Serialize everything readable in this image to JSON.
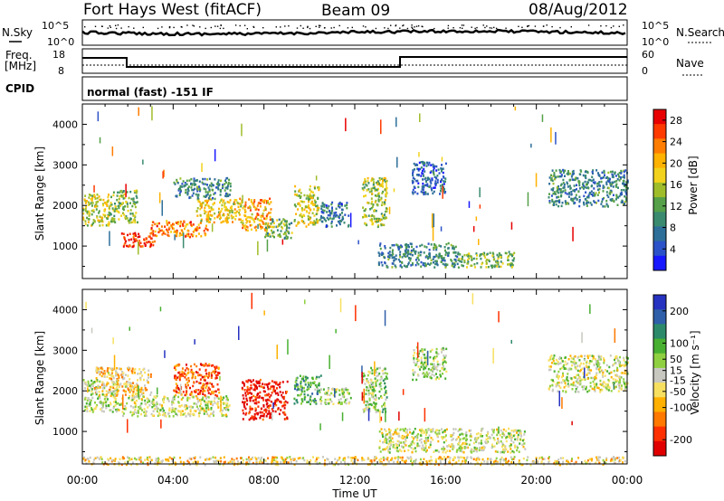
{
  "header": {
    "station": "Fort Hays West (fitACF)",
    "beam": "Beam 09",
    "date": "08/Aug/2012"
  },
  "top_panels": {
    "noise": {
      "left_label": "N.Sky",
      "right_label": "N.Search",
      "left_ticks": [
        "10^5",
        "10^0"
      ],
      "right_ticks": [
        "10^5",
        "10^0"
      ]
    },
    "freq": {
      "left_label_1": "Freq.",
      "left_label_2": "[MHz]",
      "left_ticks": [
        "18",
        "8"
      ],
      "right_label": "Nave",
      "right_ticks": [
        "60",
        "0"
      ]
    },
    "cpid": {
      "label": "CPID",
      "mode_text": "normal (fast) -151 IF"
    }
  },
  "chart_data": [
    {
      "type": "heatmap",
      "name": "power",
      "ylabel": "Slant Range [km]",
      "yticks": [
        1000,
        2000,
        3000,
        4000
      ],
      "ylim": [
        200,
        4500
      ],
      "xlim": [
        0,
        24
      ],
      "colorbar": {
        "label": "Power [dB]",
        "ticks": [
          4,
          8,
          12,
          16,
          20,
          24,
          28
        ],
        "range": [
          0,
          30
        ],
        "colors": [
          "#1818ff",
          "#2b52c8",
          "#2e6f9a",
          "#3a8a70",
          "#55a048",
          "#9fbd2a",
          "#f2d21c",
          "#ffb200",
          "#ff7d00",
          "#ff3a00",
          "#e80000"
        ]
      },
      "echo_regions": [
        {
          "t0": 0.0,
          "t1": 1.2,
          "r0": 1500,
          "r1": 2300,
          "level": 0.55
        },
        {
          "t0": 1.2,
          "t1": 2.4,
          "r0": 1600,
          "r1": 2400,
          "level": 0.45
        },
        {
          "t0": 1.7,
          "t1": 3.2,
          "r0": 1000,
          "r1": 1350,
          "level": 0.9
        },
        {
          "t0": 3.0,
          "t1": 5.5,
          "r0": 1250,
          "r1": 1650,
          "level": 0.75
        },
        {
          "t0": 5.0,
          "t1": 7.0,
          "r0": 1600,
          "r1": 2200,
          "level": 0.6
        },
        {
          "t0": 4.0,
          "t1": 6.5,
          "r0": 2200,
          "r1": 2700,
          "level": 0.3
        },
        {
          "t0": 7.0,
          "t1": 8.3,
          "r0": 1400,
          "r1": 2200,
          "level": 0.7
        },
        {
          "t0": 8.0,
          "t1": 9.2,
          "r0": 1200,
          "r1": 1700,
          "level": 0.4
        },
        {
          "t0": 9.3,
          "t1": 10.4,
          "r0": 1500,
          "r1": 2500,
          "level": 0.55
        },
        {
          "t0": 10.4,
          "t1": 11.7,
          "r0": 1500,
          "r1": 2100,
          "level": 0.25
        },
        {
          "t0": 12.3,
          "t1": 13.4,
          "r0": 1500,
          "r1": 2700,
          "level": 0.5
        },
        {
          "t0": 13.0,
          "t1": 16.5,
          "r0": 500,
          "r1": 1100,
          "level": 0.3
        },
        {
          "t0": 16.5,
          "t1": 19.0,
          "r0": 500,
          "r1": 900,
          "level": 0.45
        },
        {
          "t0": 14.5,
          "t1": 16.0,
          "r0": 2300,
          "r1": 3100,
          "level": 0.2
        },
        {
          "t0": 20.5,
          "t1": 24.0,
          "r0": 2000,
          "r1": 2900,
          "level": 0.3
        }
      ]
    },
    {
      "type": "heatmap",
      "name": "velocity",
      "ylabel": "Slant Range [km]",
      "yticks": [
        1000,
        2000,
        3000,
        4000
      ],
      "ylim": [
        200,
        4500
      ],
      "xlim": [
        0,
        24
      ],
      "xticks": [
        "00:00",
        "04:00",
        "08:00",
        "12:00",
        "16:00",
        "20:00",
        "00:00"
      ],
      "xlabel": "Time UT",
      "colorbar": {
        "label": "Velocity [m s⁻¹]",
        "ticks": [
          200,
          100,
          50,
          15,
          -15,
          -50,
          -100,
          -200
        ],
        "range": [
          -250,
          250
        ],
        "colors": [
          "#2632c0",
          "#2f5fa8",
          "#2c8a6a",
          "#48b030",
          "#8fd040",
          "#c8c8c0",
          "#f7e060",
          "#ffb000",
          "#ff7800",
          "#ff3000",
          "#e00000"
        ]
      },
      "echo_regions": [
        {
          "t0": 0.0,
          "t1": 1.5,
          "r0": 1500,
          "r1": 2300,
          "level": 0.45
        },
        {
          "t0": 0.5,
          "t1": 3.0,
          "r0": 1900,
          "r1": 2600,
          "level": 0.62
        },
        {
          "t0": 1.5,
          "t1": 6.5,
          "r0": 1400,
          "r1": 1900,
          "level": 0.5
        },
        {
          "t0": 4.0,
          "t1": 6.0,
          "r0": 1900,
          "r1": 2700,
          "level": 0.82
        },
        {
          "t0": 7.0,
          "t1": 9.0,
          "r0": 1300,
          "r1": 2300,
          "level": 0.95
        },
        {
          "t0": 9.3,
          "t1": 10.5,
          "r0": 1700,
          "r1": 2400,
          "level": 0.3
        },
        {
          "t0": 10.4,
          "t1": 11.8,
          "r0": 1700,
          "r1": 2100,
          "level": 0.48
        },
        {
          "t0": 12.3,
          "t1": 13.4,
          "r0": 1500,
          "r1": 2600,
          "level": 0.4
        },
        {
          "t0": 13.0,
          "t1": 19.5,
          "r0": 500,
          "r1": 1100,
          "level": 0.5
        },
        {
          "t0": 14.5,
          "t1": 16.0,
          "r0": 2300,
          "r1": 3100,
          "level": 0.45
        },
        {
          "t0": 20.5,
          "t1": 24.0,
          "r0": 2000,
          "r1": 2900,
          "level": 0.5
        },
        {
          "t0": 0.0,
          "t1": 24.0,
          "r0": 200,
          "r1": 400,
          "level": 0.6
        }
      ]
    }
  ]
}
